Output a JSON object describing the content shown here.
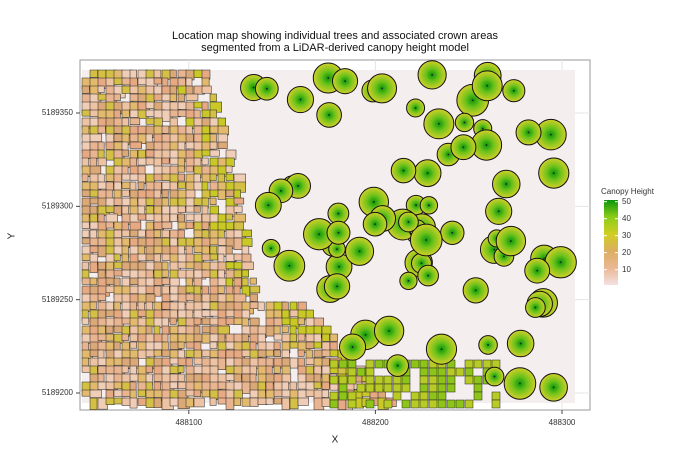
{
  "chart_data": {
    "type": "map",
    "title": [
      "Location map showing individual trees and associated crown areas",
      "segmented from a LiDAR-derived canopy height model"
    ],
    "xlabel": "X",
    "ylabel": "Y",
    "xlim": [
      488041.7,
      488315
    ],
    "xticks": [
      488100,
      488200,
      488300
    ],
    "ylim": [
      5189190.9,
      5189378.4
    ],
    "yticks": [
      5189200,
      5189250,
      5189300,
      5189350
    ],
    "grid": true,
    "legend": {
      "title": "Canopy Height",
      "lim": [
        1,
        51
      ],
      "ticks": [
        10,
        20,
        30,
        40,
        50
      ],
      "colors": [
        "#f3e1e1",
        "#e9b894",
        "#dcae62",
        "#cfcf22",
        "#8ccc18",
        "#0a960a"
      ]
    }
  }
}
